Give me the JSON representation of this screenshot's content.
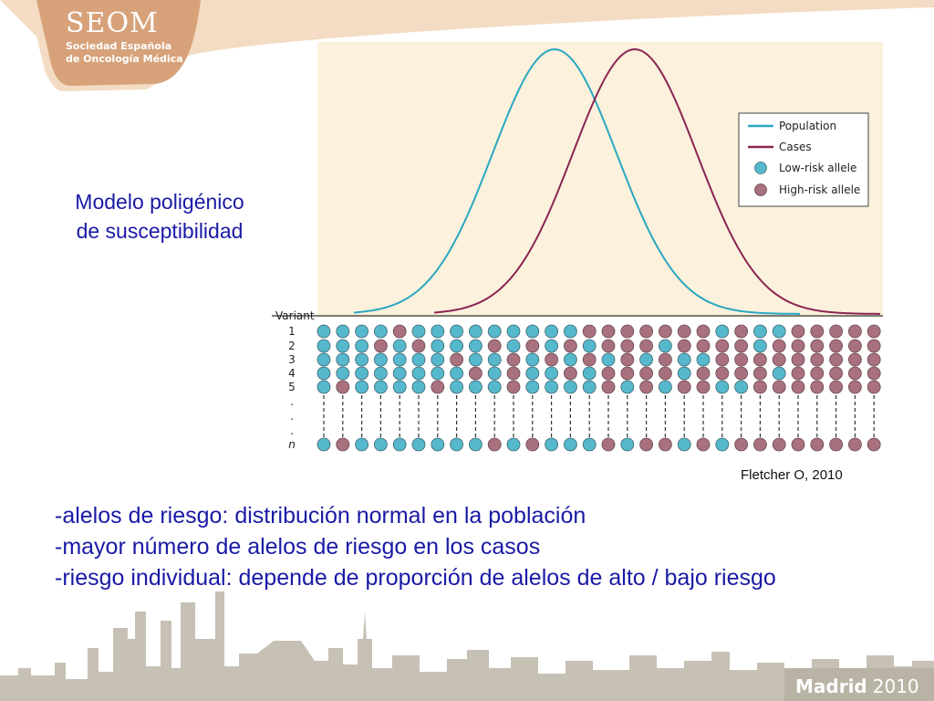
{
  "logo": {
    "name": "SEOM",
    "line1": "Sociedad Española",
    "line2": "de Oncología Médica"
  },
  "title": {
    "line1": "Modelo poligénico",
    "line2": "de susceptibilidad"
  },
  "figure": {
    "legend": {
      "population": "Population",
      "cases": "Cases",
      "low_risk": "Low-risk allele",
      "high_risk": "High-risk allele"
    },
    "variant_label": "Variant",
    "row_labels": [
      "1",
      "2",
      "3",
      "4",
      "5",
      ".",
      ".",
      ".",
      "n"
    ],
    "colors": {
      "population": "#2aa7c0",
      "cases": "#8a2552",
      "low_allele": "#56b8cc",
      "high_allele": "#a9707e",
      "background": "#fbf1dc"
    },
    "allele_grid": [
      "LLLLHLLLLLLLLLHHHHHHHLHLLHHHHH",
      "LLLHLHLLLHLHLHLHHHLHHHHLHHHHHH",
      "LLLLLLLHLLHLHLHLHLHLLHHHHHHHHH",
      "LLLLLLLLHLHLLHLHHHHLHHHHLHHHHH",
      "LHLLLLHLLLHLLLLHLHLHHLLHHHHHHH",
      "LHLLLLLLLHLHLLLHLHHLHLHHHHHHHH"
    ]
  },
  "credit": "Fletcher O, 2010",
  "bullets": [
    "-alelos de riesgo: distribución normal en la población",
    "-mayor número de alelos de riesgo en los casos",
    "-riesgo individual: depende de proporción de alelos de alto / bajo riesgo"
  ],
  "footer": {
    "city": "Madrid",
    "year": "2010"
  }
}
